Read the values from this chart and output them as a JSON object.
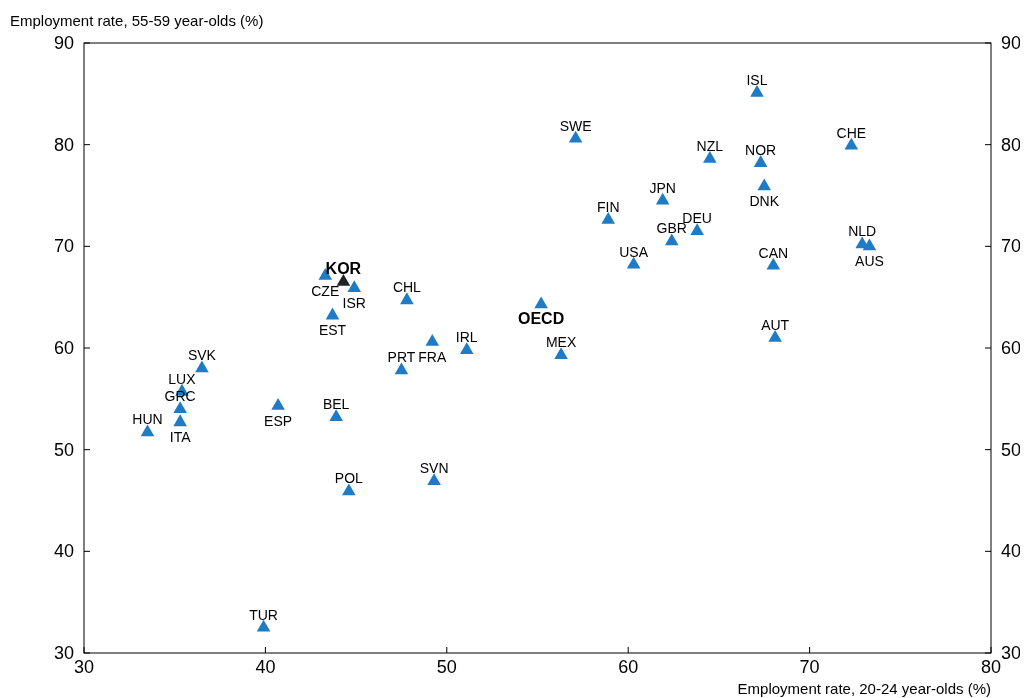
{
  "chart_data": {
    "type": "scatter",
    "xlabel": "Employment rate, 20-24 year-olds (%)",
    "ylabel": "Employment rate, 55-59 year-olds (%)",
    "xlim": [
      30,
      80
    ],
    "xticks": [
      30,
      40,
      50,
      60,
      70,
      80
    ],
    "ylim": [
      30,
      90
    ],
    "yticks": [
      30,
      40,
      50,
      60,
      70,
      80,
      90
    ],
    "y2lim": [
      30,
      90
    ],
    "y2ticks": [
      30,
      40,
      50,
      60,
      70,
      80,
      90
    ],
    "marker": "triangle",
    "grid": false,
    "x": [
      67.1,
      57.1,
      64.5,
      67.3,
      72.3,
      67.5,
      61.9,
      58.9,
      63.8,
      62.4,
      60.3,
      68.0,
      72.9,
      73.3,
      44.3,
      43.3,
      44.9,
      47.8,
      43.7,
      55.2,
      68.1,
      51.1,
      49.2,
      56.3,
      47.5,
      36.5,
      35.4,
      35.3,
      35.3,
      33.5,
      40.7,
      43.9,
      49.3,
      44.6,
      39.9
    ],
    "values": [
      85.1,
      80.6,
      78.6,
      78.2,
      79.9,
      75.9,
      74.5,
      72.6,
      71.5,
      70.5,
      68.2,
      68.1,
      70.2,
      70.0,
      66.5,
      67.1,
      65.9,
      64.7,
      63.2,
      64.3,
      61.0,
      59.8,
      60.6,
      59.3,
      57.8,
      58.0,
      55.7,
      54.0,
      52.7,
      51.7,
      54.3,
      53.2,
      46.9,
      45.9,
      32.5
    ],
    "colors": [
      "#1f7bc4",
      "#1f7bc4",
      "#1f7bc4",
      "#1f7bc4",
      "#1f7bc4",
      "#1f7bc4",
      "#1f7bc4",
      "#1f7bc4",
      "#1f7bc4",
      "#1f7bc4",
      "#1f7bc4",
      "#1f7bc4",
      "#1f7bc4",
      "#1f7bc4",
      "#222222",
      "#1f7bc4",
      "#1f7bc4",
      "#1f7bc4",
      "#1f7bc4",
      "#1f7bc4",
      "#1f7bc4",
      "#1f7bc4",
      "#1f7bc4",
      "#1f7bc4",
      "#1f7bc4",
      "#1f7bc4",
      "#1f7bc4",
      "#1f7bc4",
      "#1f7bc4",
      "#1f7bc4",
      "#1f7bc4",
      "#1f7bc4",
      "#1f7bc4",
      "#1f7bc4",
      "#1f7bc4"
    ],
    "annotations": [
      {
        "text": "ISL",
        "x": 67.1,
        "y": 85.1
      },
      {
        "text": "SWE",
        "x": 57.1,
        "y": 80.6
      },
      {
        "text": "NZL",
        "x": 64.5,
        "y": 78.6
      },
      {
        "text": "NOR",
        "x": 67.3,
        "y": 78.2
      },
      {
        "text": "CHE",
        "x": 72.3,
        "y": 79.9
      },
      {
        "text": "DNK",
        "x": 67.5,
        "y": 75.9
      },
      {
        "text": "JPN",
        "x": 61.9,
        "y": 74.5
      },
      {
        "text": "FIN",
        "x": 58.9,
        "y": 72.6
      },
      {
        "text": "DEU",
        "x": 63.8,
        "y": 71.5
      },
      {
        "text": "GBR",
        "x": 62.4,
        "y": 70.5
      },
      {
        "text": "USA",
        "x": 60.3,
        "y": 68.2
      },
      {
        "text": "CAN",
        "x": 68.0,
        "y": 68.1
      },
      {
        "text": "NLD",
        "x": 72.9,
        "y": 70.2
      },
      {
        "text": "AUS",
        "x": 73.3,
        "y": 70.0
      },
      {
        "text": "KOR",
        "x": 44.3,
        "y": 66.5
      },
      {
        "text": "CZE",
        "x": 43.3,
        "y": 67.1
      },
      {
        "text": "ISR",
        "x": 44.9,
        "y": 65.9
      },
      {
        "text": "CHL",
        "x": 47.8,
        "y": 64.7
      },
      {
        "text": "EST",
        "x": 43.7,
        "y": 63.2
      },
      {
        "text": "OECD",
        "x": 55.2,
        "y": 64.3
      },
      {
        "text": "AUT",
        "x": 68.1,
        "y": 61.0
      },
      {
        "text": "IRL",
        "x": 51.1,
        "y": 59.8
      },
      {
        "text": "FRA",
        "x": 49.2,
        "y": 60.6
      },
      {
        "text": "MEX",
        "x": 56.3,
        "y": 59.3
      },
      {
        "text": "PRT",
        "x": 47.5,
        "y": 57.8
      },
      {
        "text": "SVK",
        "x": 36.5,
        "y": 58.0
      },
      {
        "text": "LUX",
        "x": 35.4,
        "y": 55.7
      },
      {
        "text": "GRC",
        "x": 35.3,
        "y": 54.0
      },
      {
        "text": "ITA",
        "x": 35.3,
        "y": 52.7
      },
      {
        "text": "HUN",
        "x": 33.5,
        "y": 51.7
      },
      {
        "text": "ESP",
        "x": 40.7,
        "y": 54.3
      },
      {
        "text": "BEL",
        "x": 43.9,
        "y": 53.2
      },
      {
        "text": "SVN",
        "x": 49.3,
        "y": 46.9
      },
      {
        "text": "POL",
        "x": 44.6,
        "y": 45.9
      },
      {
        "text": "TUR",
        "x": 39.9,
        "y": 32.5
      }
    ]
  }
}
